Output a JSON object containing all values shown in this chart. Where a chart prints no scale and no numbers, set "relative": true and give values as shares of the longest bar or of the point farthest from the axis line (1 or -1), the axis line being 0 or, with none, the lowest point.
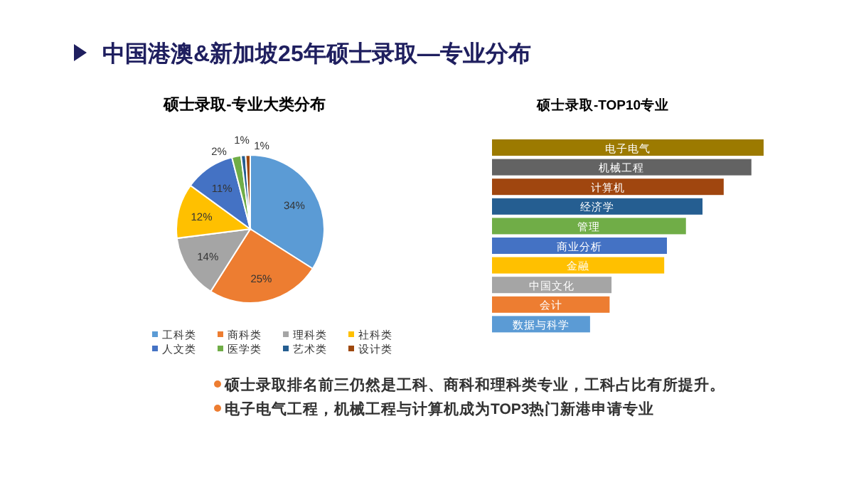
{
  "chart_data": [
    {
      "type": "pie",
      "title": "硕士录取-专业大类分布",
      "annotations": [
        "中国港澳&新加坡25年硕士录取—专业分布"
      ],
      "categories": [
        "工科类",
        "商科类",
        "理科类",
        "社科类",
        "人文类",
        "医学类",
        "艺术类",
        "设计类"
      ],
      "values": [
        34,
        25,
        14,
        12,
        11,
        2,
        1,
        1
      ],
      "colors": [
        "#5b9bd5",
        "#ed7d31",
        "#a5a5a5",
        "#ffc000",
        "#4472c4",
        "#70ad47",
        "#255e91",
        "#9e480e"
      ],
      "value_labels": [
        "34%",
        "25%",
        "14%",
        "12%",
        "11%",
        "2%",
        "1%",
        "1%"
      ],
      "legend": "bottom"
    },
    {
      "type": "bar",
      "orientation": "horizontal",
      "relative": true,
      "title": "硕士录取-TOP10专业",
      "annotations": [
        "硕士录取排名前三仍然是工科、商科和理科类专业，工科占比有所提升。",
        "电子电气工程，机械工程与计算机成为TOP3热门新港申请专业"
      ],
      "categories": [
        "电子电气",
        "机械工程",
        "计算机",
        "经济学",
        "管理",
        "商业分析",
        "金融",
        "中国文化",
        "会计",
        "数据与科学"
      ],
      "values": [
        1,
        0.955,
        0.853,
        0.775,
        0.714,
        0.644,
        0.634,
        0.44,
        0.433,
        0.361
      ],
      "colors": [
        "#9c7a00",
        "#636363",
        "#a0460f",
        "#255e91",
        "#70ad47",
        "#4472c4",
        "#ffc000",
        "#a5a5a5",
        "#ed7d31",
        "#5b9bd5"
      ]
    }
  ]
}
